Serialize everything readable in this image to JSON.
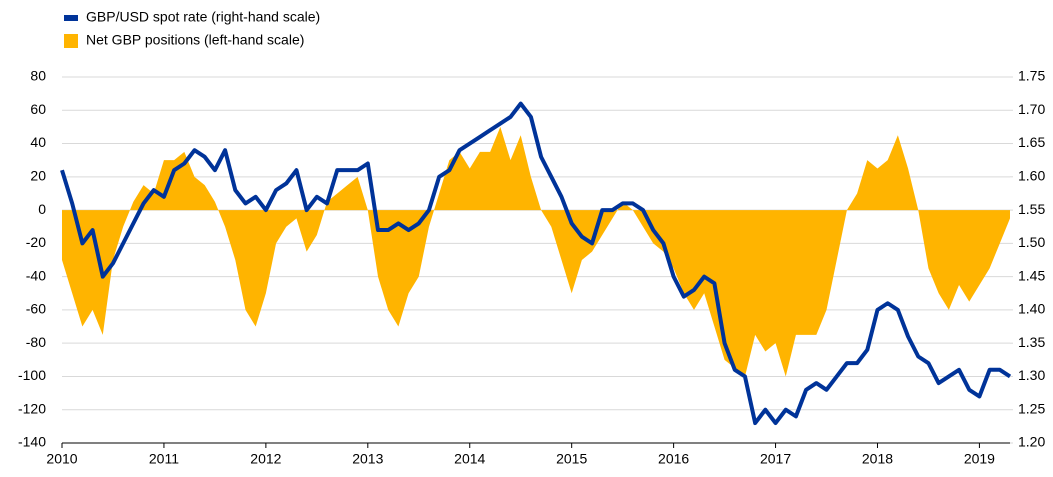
{
  "chart_data": {
    "type": "area-line",
    "x": [
      2010.0,
      2010.1,
      2010.2,
      2010.3,
      2010.4,
      2010.5,
      2010.6,
      2010.7,
      2010.8,
      2010.9,
      2011.0,
      2011.1,
      2011.2,
      2011.3,
      2011.4,
      2011.5,
      2011.6,
      2011.7,
      2011.8,
      2011.9,
      2012.0,
      2012.1,
      2012.2,
      2012.3,
      2012.4,
      2012.5,
      2012.6,
      2012.7,
      2012.8,
      2012.9,
      2013.0,
      2013.1,
      2013.2,
      2013.3,
      2013.4,
      2013.5,
      2013.6,
      2013.7,
      2013.8,
      2013.9,
      2014.0,
      2014.1,
      2014.2,
      2014.3,
      2014.4,
      2014.5,
      2014.6,
      2014.7,
      2014.8,
      2014.9,
      2015.0,
      2015.1,
      2015.2,
      2015.3,
      2015.4,
      2015.5,
      2015.6,
      2015.7,
      2015.8,
      2015.9,
      2016.0,
      2016.1,
      2016.2,
      2016.3,
      2016.4,
      2016.5,
      2016.6,
      2016.7,
      2016.8,
      2016.9,
      2017.0,
      2017.1,
      2017.2,
      2017.3,
      2017.4,
      2017.5,
      2017.6,
      2017.7,
      2017.8,
      2017.9,
      2018.0,
      2018.1,
      2018.2,
      2018.3,
      2018.4,
      2018.5,
      2018.6,
      2018.7,
      2018.8,
      2018.9,
      2019.0,
      2019.1,
      2019.2,
      2019.3
    ],
    "series": [
      {
        "name": "GBP/USD spot rate (right-hand scale)",
        "color": "#003399",
        "axis": "y2",
        "kind": "line",
        "values": [
          1.61,
          1.56,
          1.5,
          1.52,
          1.45,
          1.47,
          1.5,
          1.53,
          1.56,
          1.58,
          1.57,
          1.61,
          1.62,
          1.64,
          1.63,
          1.61,
          1.64,
          1.58,
          1.56,
          1.57,
          1.55,
          1.58,
          1.59,
          1.61,
          1.55,
          1.57,
          1.56,
          1.61,
          1.61,
          1.61,
          1.62,
          1.52,
          1.52,
          1.53,
          1.52,
          1.53,
          1.55,
          1.6,
          1.61,
          1.64,
          1.65,
          1.66,
          1.67,
          1.68,
          1.69,
          1.71,
          1.69,
          1.63,
          1.6,
          1.57,
          1.53,
          1.51,
          1.5,
          1.55,
          1.55,
          1.56,
          1.56,
          1.55,
          1.52,
          1.5,
          1.45,
          1.42,
          1.43,
          1.45,
          1.44,
          1.35,
          1.31,
          1.3,
          1.23,
          1.25,
          1.23,
          1.25,
          1.24,
          1.28,
          1.29,
          1.28,
          1.3,
          1.32,
          1.32,
          1.34,
          1.4,
          1.41,
          1.4,
          1.36,
          1.33,
          1.32,
          1.29,
          1.3,
          1.31,
          1.28,
          1.27,
          1.31,
          1.31,
          1.3
        ]
      },
      {
        "name": "Net GBP positions (left-hand scale)",
        "color": "#ffb400",
        "axis": "y",
        "kind": "area",
        "values": [
          -30,
          -50,
          -70,
          -60,
          -75,
          -30,
          -10,
          5,
          15,
          10,
          30,
          30,
          35,
          20,
          15,
          5,
          -10,
          -30,
          -60,
          -70,
          -50,
          -20,
          -10,
          -5,
          -25,
          -15,
          5,
          10,
          15,
          20,
          0,
          -40,
          -60,
          -70,
          -50,
          -40,
          -10,
          10,
          30,
          35,
          25,
          35,
          35,
          50,
          30,
          45,
          20,
          0,
          -10,
          -30,
          -50,
          -30,
          -25,
          -15,
          -5,
          5,
          0,
          -10,
          -20,
          -25,
          -35,
          -50,
          -60,
          -50,
          -70,
          -90,
          -95,
          -100,
          -75,
          -85,
          -80,
          -100,
          -75,
          -75,
          -75,
          -60,
          -30,
          0,
          10,
          30,
          25,
          30,
          45,
          25,
          0,
          -35,
          -50,
          -60,
          -45,
          -55,
          -45,
          -35,
          -20,
          -5
        ]
      }
    ],
    "xlim": [
      2010,
      2019.3
    ],
    "xticks": [
      2010,
      2011,
      2012,
      2013,
      2014,
      2015,
      2016,
      2017,
      2018,
      2019
    ],
    "ylim": [
      -140,
      80
    ],
    "yticks": [
      80,
      60,
      40,
      20,
      0,
      -20,
      -40,
      -60,
      -80,
      -100,
      -120,
      -140
    ],
    "y2lim": [
      1.2,
      1.75
    ],
    "y2ticks": [
      1.75,
      {
        "value": 1.7,
        "label": "1.70"
      },
      1.65,
      {
        "value": 1.6,
        "label": "1.60"
      },
      1.55,
      {
        "value": 1.5,
        "label": "1.50"
      },
      1.45,
      {
        "value": 1.4,
        "label": "1.40"
      },
      1.35,
      {
        "value": 1.3,
        "label": "1.30"
      },
      1.25,
      {
        "value": 1.2,
        "label": "1.20"
      }
    ],
    "grid": true,
    "legend": "top-left"
  }
}
